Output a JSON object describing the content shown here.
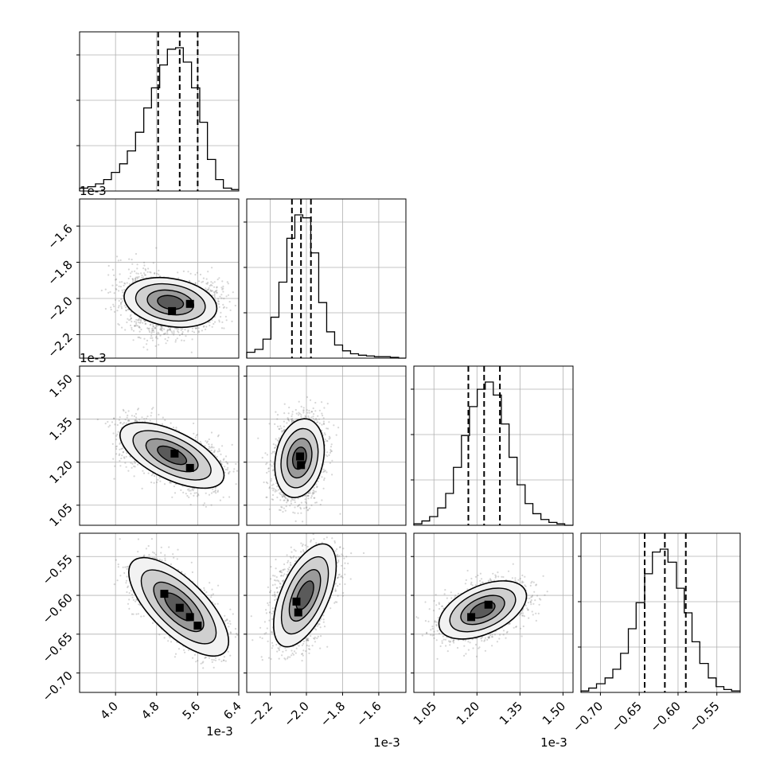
{
  "chart_data": {
    "type": "corner",
    "grid": true,
    "parameters": [
      {
        "offset_label": "1e-3",
        "range": [
          3.3,
          6.4
        ],
        "ticks": [
          "4.0",
          "4.8",
          "5.6",
          "6.4"
        ],
        "tick_values": [
          4.0,
          4.8,
          5.6,
          6.4
        ],
        "quantiles": [
          4.83,
          5.25,
          5.6
        ]
      },
      {
        "offset_label": "1e-3",
        "range": [
          -2.33,
          -1.45
        ],
        "ticks": [
          "−2.2",
          "−2.0",
          "−1.8",
          "−1.6"
        ],
        "tick_values": [
          -2.2,
          -2.0,
          -1.8,
          -1.6
        ],
        "quantiles": [
          -2.08,
          -2.03,
          -1.975
        ]
      },
      {
        "offset_label": "1e-3",
        "range": [
          0.98,
          1.535
        ],
        "ticks": [
          "1.05",
          "1.20",
          "1.35",
          "1.50"
        ],
        "tick_values": [
          1.05,
          1.2,
          1.35,
          1.5
        ],
        "quantiles": [
          1.17,
          1.225,
          1.28
        ]
      },
      {
        "offset_label": "",
        "range": [
          -0.725,
          -0.52
        ],
        "ticks": [
          "−0.70",
          "−0.65",
          "−0.60",
          "−0.55"
        ],
        "tick_values": [
          -0.7,
          -0.65,
          -0.6,
          -0.55
        ],
        "quantiles": [
          -0.643,
          -0.617,
          -0.59
        ]
      }
    ],
    "histograms": [
      {
        "edges": [
          3.3,
          3.46,
          3.61,
          3.77,
          3.92,
          4.08,
          4.23,
          4.39,
          4.55,
          4.7,
          4.86,
          5.01,
          5.17,
          5.32,
          5.48,
          5.64,
          5.79,
          5.95,
          6.1,
          6.26,
          6.4
        ],
        "counts": [
          0.02,
          0.03,
          0.05,
          0.08,
          0.13,
          0.19,
          0.28,
          0.41,
          0.58,
          0.72,
          0.88,
          0.99,
          1.0,
          0.9,
          0.72,
          0.48,
          0.22,
          0.08,
          0.02,
          0.01
        ]
      },
      {
        "edges": [
          -2.33,
          -2.285,
          -2.24,
          -2.196,
          -2.152,
          -2.108,
          -2.064,
          -2.02,
          -1.976,
          -1.932,
          -1.888,
          -1.844,
          -1.8,
          -1.756,
          -1.712,
          -1.668,
          -1.624,
          -1.58,
          -1.536,
          -1.49,
          -1.45
        ],
        "counts": [
          0.04,
          0.06,
          0.13,
          0.28,
          0.52,
          0.82,
          0.98,
          0.96,
          0.72,
          0.38,
          0.18,
          0.09,
          0.05,
          0.03,
          0.02,
          0.015,
          0.01,
          0.01,
          0.005,
          0.0
        ]
      },
      {
        "edges": [
          0.98,
          1.008,
          1.035,
          1.063,
          1.091,
          1.118,
          1.146,
          1.174,
          1.201,
          1.229,
          1.257,
          1.285,
          1.312,
          1.34,
          1.368,
          1.395,
          1.423,
          1.451,
          1.479,
          1.506,
          1.535
        ],
        "counts": [
          0.01,
          0.03,
          0.06,
          0.12,
          0.22,
          0.4,
          0.62,
          0.82,
          0.94,
          0.99,
          0.9,
          0.7,
          0.47,
          0.28,
          0.15,
          0.08,
          0.04,
          0.02,
          0.01,
          0.0
        ]
      },
      {
        "edges": [
          -0.725,
          -0.715,
          -0.705,
          -0.694,
          -0.684,
          -0.674,
          -0.664,
          -0.654,
          -0.643,
          -0.633,
          -0.623,
          -0.613,
          -0.602,
          -0.592,
          -0.582,
          -0.572,
          -0.561,
          -0.551,
          -0.541,
          -0.531,
          -0.52
        ],
        "counts": [
          0.01,
          0.03,
          0.06,
          0.1,
          0.16,
          0.27,
          0.44,
          0.62,
          0.82,
          0.97,
          0.99,
          0.9,
          0.72,
          0.55,
          0.35,
          0.2,
          0.1,
          0.04,
          0.02,
          0.01
        ]
      }
    ],
    "pairs": [
      {
        "x": 0,
        "y": 1,
        "ridge": [
          [
            4.45,
            -1.92
          ],
          [
            4.6,
            -2.05
          ],
          [
            5.0,
            -2.1
          ],
          [
            5.4,
            -2.05
          ],
          [
            5.9,
            -1.99
          ]
        ],
        "bumps": [
          [
            5.1,
            -2.07,
            0.7
          ],
          [
            5.45,
            -2.03,
            0.8
          ]
        ]
      },
      {
        "x": 0,
        "y": 2,
        "ridge": [
          [
            4.3,
            1.3
          ],
          [
            4.7,
            1.25
          ],
          [
            5.1,
            1.22
          ],
          [
            5.5,
            1.19
          ],
          [
            5.9,
            1.16
          ]
        ],
        "bumps": [
          [
            5.15,
            1.23,
            0.6
          ],
          [
            5.45,
            1.18,
            0.7
          ]
        ]
      },
      {
        "x": 1,
        "y": 2,
        "ridge": [
          [
            -2.07,
            1.1
          ],
          [
            -2.06,
            1.15
          ],
          [
            -2.04,
            1.22
          ],
          [
            -2.02,
            1.28
          ],
          [
            -2.0,
            1.32
          ]
        ],
        "bumps": [
          [
            -2.035,
            1.22,
            0.9
          ],
          [
            -2.03,
            1.19,
            0.7
          ]
        ]
      },
      {
        "x": 0,
        "y": 3,
        "ridge": [
          [
            4.5,
            -0.57
          ],
          [
            4.9,
            -0.593
          ],
          [
            5.25,
            -0.614
          ],
          [
            5.55,
            -0.633
          ],
          [
            5.95,
            -0.664
          ]
        ],
        "bumps": [
          [
            4.95,
            -0.598,
            0.6
          ],
          [
            5.25,
            -0.616,
            0.8
          ],
          [
            5.45,
            -0.628,
            0.7
          ],
          [
            5.6,
            -0.639,
            0.5
          ]
        ]
      },
      {
        "x": 1,
        "y": 3,
        "ridge": [
          [
            -2.08,
            -0.66
          ],
          [
            -2.06,
            -0.63
          ],
          [
            -2.05,
            -0.6
          ],
          [
            -2.02,
            -0.585
          ],
          [
            -1.96,
            -0.57
          ],
          [
            -1.88,
            -0.555
          ]
        ],
        "bumps": [
          [
            -2.055,
            -0.608,
            0.8
          ],
          [
            -2.045,
            -0.622,
            0.8
          ]
        ]
      },
      {
        "x": 2,
        "y": 3,
        "ridge": [
          [
            1.1,
            -0.64
          ],
          [
            1.17,
            -0.628
          ],
          [
            1.22,
            -0.618
          ],
          [
            1.27,
            -0.608
          ],
          [
            1.34,
            -0.6
          ]
        ],
        "bumps": [
          [
            1.18,
            -0.628,
            0.7
          ],
          [
            1.24,
            -0.612,
            0.8
          ]
        ]
      }
    ]
  }
}
